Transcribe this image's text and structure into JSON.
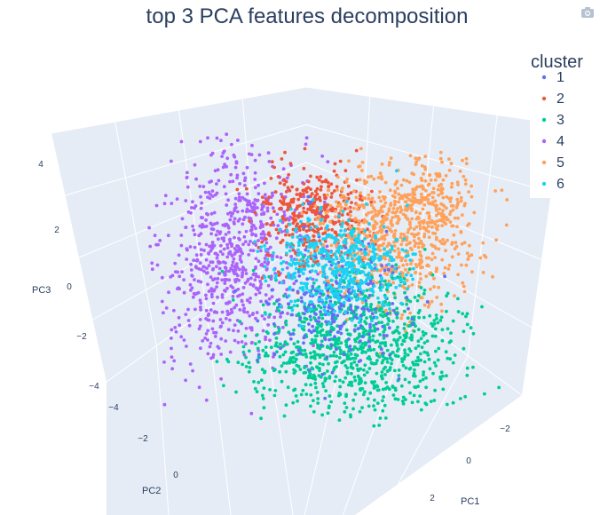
{
  "chart_data": {
    "type": "scatter",
    "title": "top 3 PCA features decomposition",
    "axes": {
      "x": {
        "label": "PC1",
        "ticks": [
          "−2",
          "0",
          "2"
        ]
      },
      "y": {
        "label": "PC2",
        "ticks": [
          "−4",
          "−2",
          "0"
        ]
      },
      "z": {
        "label": "PC3",
        "ticks": [
          "−4",
          "−2",
          "0",
          "2",
          "4"
        ]
      }
    },
    "legend": {
      "title": "cluster",
      "placement": "top-right"
    },
    "series": [
      {
        "name": "1",
        "color": "#636efa"
      },
      {
        "name": "2",
        "color": "#ef553b"
      },
      {
        "name": "3",
        "color": "#00cc96"
      },
      {
        "name": "4",
        "color": "#ab63fa"
      },
      {
        "name": "5",
        "color": "#ffa15a"
      },
      {
        "name": "6",
        "color": "#19d3f3"
      }
    ],
    "scene_background": "#e5ecf6",
    "grid": true
  },
  "toolbar": {
    "icon": "camera-icon"
  }
}
